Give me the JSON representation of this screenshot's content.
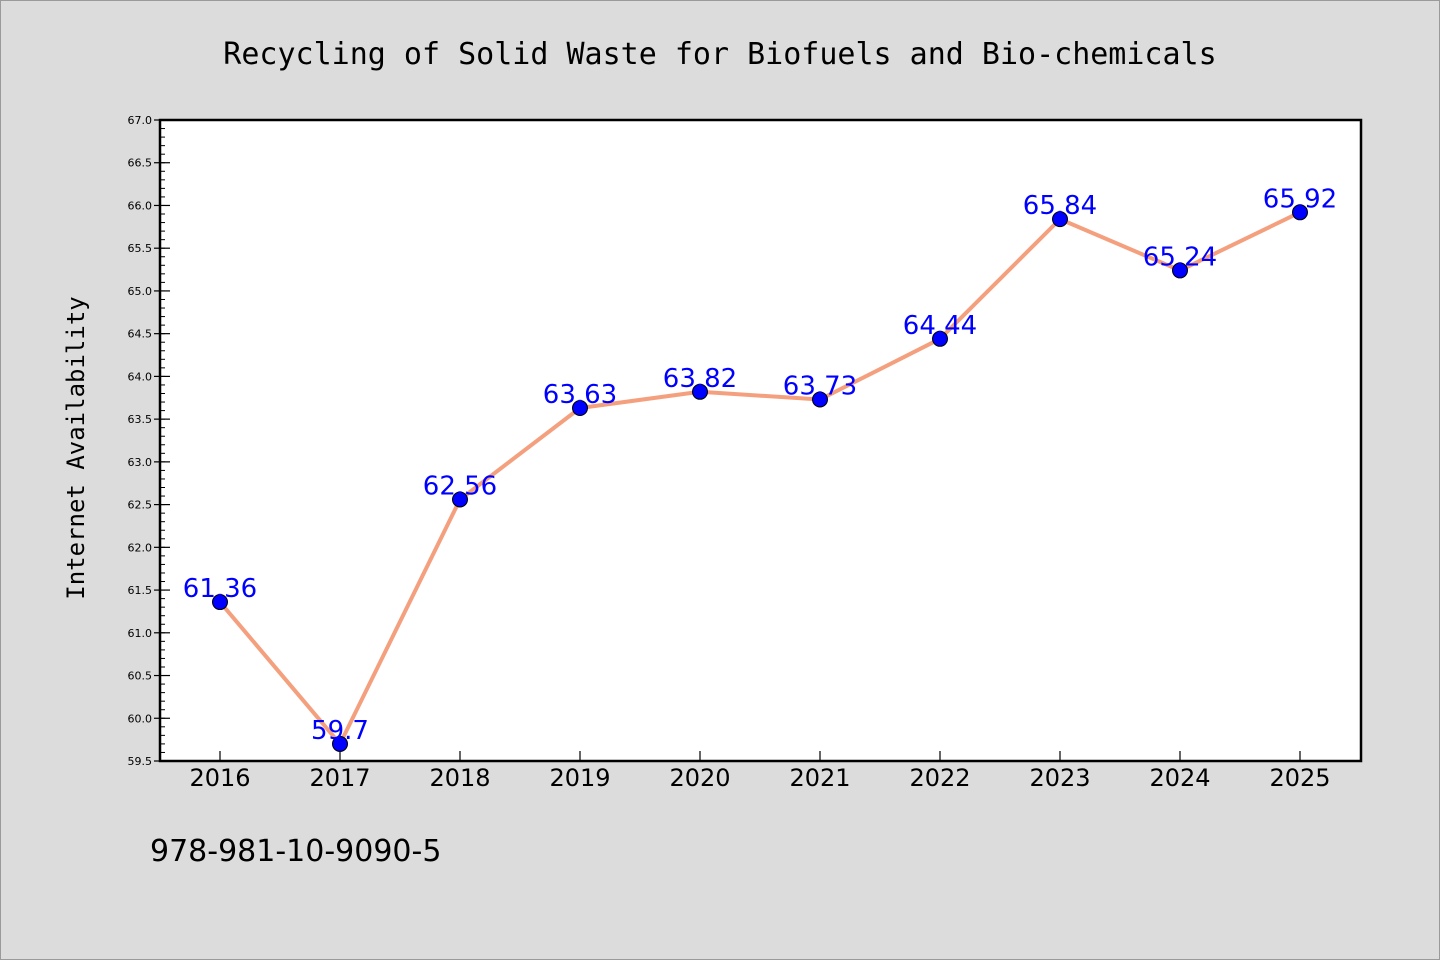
{
  "chart_data": {
    "type": "line",
    "title": "Recycling of Solid Waste for Biofuels and Bio-chemicals",
    "xlabel": "",
    "ylabel": "Internet Availability",
    "categories": [
      "2016",
      "2017",
      "2018",
      "2019",
      "2020",
      "2021",
      "2022",
      "2023",
      "2024",
      "2025"
    ],
    "values": [
      61.36,
      59.7,
      62.56,
      63.63,
      63.82,
      63.73,
      64.44,
      65.84,
      65.24,
      65.92
    ],
    "data_labels": [
      "61.36",
      "59.7",
      "62.56",
      "63.63",
      "63.82",
      "63.73",
      "64.44",
      "65.84",
      "65.24",
      "65.92"
    ],
    "ylim": [
      59.5,
      67.0
    ],
    "yticks": [
      "59.5",
      "60.0",
      "60.5",
      "61.0",
      "61.5",
      "62.0",
      "62.5",
      "63.0",
      "63.5",
      "64.0",
      "64.5",
      "65.0",
      "65.5",
      "66.0",
      "66.5",
      "67.0"
    ],
    "grid": false,
    "line_color": "#f4a07e",
    "marker_color": "#0000ff",
    "label_color": "#0000ff"
  },
  "footer": {
    "isbn": "978-981-10-9090-5"
  }
}
